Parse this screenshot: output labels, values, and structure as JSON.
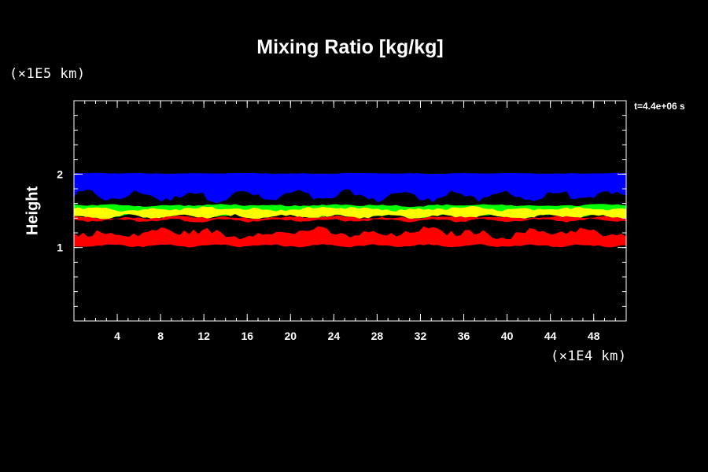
{
  "chart_data": {
    "type": "heatmap",
    "title": "Mixing Ratio [kg/kg]",
    "ylabel": "Height",
    "y_unit": "(×1E5 km)",
    "x_unit": "(×1E4 km)",
    "time_label": "t=4.4e+06 s",
    "xlim": [
      0,
      51
    ],
    "ylim": [
      0,
      3
    ],
    "x_ticks": [
      4,
      8,
      12,
      16,
      20,
      24,
      28,
      32,
      36,
      40,
      44,
      48
    ],
    "y_ticks": [
      1,
      2
    ],
    "colors": {
      "background": "#000000",
      "blue": "#0000ff",
      "green": "#00ff00",
      "yellow": "#ffff00",
      "red": "#ff0000",
      "axis": "#ffffff"
    },
    "bands": [
      {
        "color": "blue",
        "y_bottom": [
          1.6,
          1.8
        ],
        "y_top": [
          2.0,
          2.02
        ]
      },
      {
        "color": "green",
        "y_bottom": [
          1.4,
          1.47
        ],
        "y_top": [
          1.55,
          1.6
        ]
      },
      {
        "color": "yellow",
        "y_bottom": [
          1.38,
          1.46
        ],
        "y_top": [
          1.48,
          1.57
        ]
      },
      {
        "color": "red",
        "y_bottom": [
          1.34,
          1.4
        ],
        "y_top": [
          1.38,
          1.44
        ]
      },
      {
        "color": "red",
        "y_bottom": [
          1.0,
          1.05
        ],
        "y_top": [
          1.1,
          1.3
        ]
      }
    ]
  }
}
